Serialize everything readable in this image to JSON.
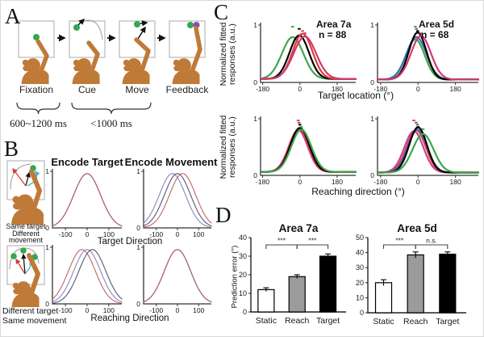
{
  "panel_a": {
    "label": "A",
    "frames": [
      "Fixation",
      "Cue",
      "Move",
      "Feedback"
    ],
    "timing": [
      "600~1200 ms",
      "<1000 ms"
    ],
    "target_color": "#2fa84f",
    "feedback_color": "#8a4fa8",
    "monkey_color": "#bf7a38"
  },
  "panel_b": {
    "label": "B",
    "headers": [
      "Encode Target",
      "Encode Movement"
    ],
    "cartoon1_caption": [
      "Same target",
      "Different",
      "movement"
    ],
    "cartoon2_caption": [
      "Different target",
      "Same movement"
    ],
    "xlabel_top": "Target Direction",
    "xlabel_bottom": "Reaching Direction"
  },
  "panel_c": {
    "label": "C",
    "ylabel_line1": "Normalized fitted",
    "ylabel_line2": "responses (a.u.)"
  },
  "panel_d": {
    "label": "D"
  },
  "chart_data": [
    {
      "id": "b1",
      "type": "line",
      "panel": "B",
      "subtitle": "Encode Target",
      "xlabel": "Target Direction",
      "xlim": [
        -160,
        160
      ],
      "xticks": [
        -100,
        0,
        100
      ],
      "ymin_label": "0",
      "ymax_label": "1",
      "lw": 1.1,
      "series": [
        {
          "color": "#8888bb",
          "peak": 0,
          "sigma": 62,
          "amp": 0.96,
          "base": 0
        },
        {
          "color": "#555577",
          "peak": 0,
          "sigma": 62,
          "amp": 0.96,
          "base": 0
        },
        {
          "color": "#bb6666",
          "peak": 0,
          "sigma": 62,
          "amp": 0.96,
          "base": 0
        }
      ]
    },
    {
      "id": "b2",
      "type": "line",
      "panel": "B",
      "subtitle": "Encode Movement",
      "xlabel": "Target Direction",
      "xlim": [
        -160,
        160
      ],
      "xticks": [
        -100,
        0,
        100
      ],
      "ymin_label": "0",
      "ymax_label": "1",
      "lw": 1.1,
      "series": [
        {
          "color": "#8888bb",
          "peak": -24,
          "sigma": 62,
          "amp": 0.96,
          "base": 0
        },
        {
          "color": "#555577",
          "peak": 0,
          "sigma": 62,
          "amp": 0.96,
          "base": 0
        },
        {
          "color": "#bb6666",
          "peak": 24,
          "sigma": 62,
          "amp": 0.96,
          "base": 0
        }
      ]
    },
    {
      "id": "b3",
      "type": "line",
      "panel": "B",
      "subtitle": "Encode Target",
      "xlabel": "Reaching Direction",
      "xlim": [
        -160,
        160
      ],
      "xticks": [
        -100,
        0,
        100
      ],
      "ymin_label": "0",
      "ymax_label": "1",
      "lw": 1.1,
      "series": [
        {
          "color": "#bb6666",
          "peak": -24,
          "sigma": 62,
          "amp": 0.96,
          "base": 0
        },
        {
          "color": "#8888bb",
          "peak": 0,
          "sigma": 62,
          "amp": 0.96,
          "base": 0
        },
        {
          "color": "#555577",
          "peak": 24,
          "sigma": 62,
          "amp": 0.96,
          "base": 0
        }
      ]
    },
    {
      "id": "b4",
      "type": "line",
      "panel": "B",
      "subtitle": "Encode Movement",
      "xlabel": "Reaching Direction",
      "xlim": [
        -160,
        160
      ],
      "xticks": [
        -100,
        0,
        100
      ],
      "ymin_label": "0",
      "ymax_label": "1",
      "lw": 1.1,
      "series": [
        {
          "color": "#8888bb",
          "peak": 0,
          "sigma": 62,
          "amp": 0.96,
          "base": 0
        },
        {
          "color": "#555577",
          "peak": 0,
          "sigma": 62,
          "amp": 0.96,
          "base": 0
        },
        {
          "color": "#bb6666",
          "peak": 0,
          "sigma": 62,
          "amp": 0.96,
          "base": 0
        }
      ]
    },
    {
      "id": "c1",
      "type": "line",
      "panel": "C",
      "title": "Area 7a",
      "n_label": "n = 88",
      "xlabel": "Target location (°)",
      "ylabel": "Normalized fitted responses (a.u.)",
      "xlim": [
        -190,
        270
      ],
      "xticks": [
        -180,
        0,
        180
      ],
      "ymin_label": "0",
      "ymax_label": "1",
      "lw": 2.2,
      "peak_markers": true,
      "series": [
        {
          "color": "#3fa54d",
          "peak": -35,
          "sigma": 52,
          "amp": 0.73,
          "base": 0.06
        },
        {
          "color": "#000000",
          "peak": -3,
          "sigma": 47,
          "amp": 0.76,
          "base": 0.06
        },
        {
          "color": "#e23b3b",
          "peak": 13,
          "sigma": 48,
          "amp": 0.79,
          "base": 0.06
        },
        {
          "color": "#d23a6e",
          "peak": 24,
          "sigma": 54,
          "amp": 0.74,
          "base": 0.06
        }
      ]
    },
    {
      "id": "c2",
      "type": "line",
      "panel": "C",
      "title": "Area 5d",
      "n_label": "n = 68",
      "xlabel": "Target location (°)",
      "ylabel": "Normalized fitted responses (a.u.)",
      "xlim": [
        -195,
        290
      ],
      "xticks": [
        -180,
        0,
        180
      ],
      "ymin_label": "0",
      "ymax_label": "1",
      "lw": 2.2,
      "peak_markers": true,
      "series": [
        {
          "color": "#3fa54d",
          "peak": -13,
          "sigma": 45,
          "amp": 0.7,
          "base": 0.05
        },
        {
          "color": "#3a6fae",
          "peak": -8,
          "sigma": 48,
          "amp": 0.74,
          "base": 0.05
        },
        {
          "color": "#000000",
          "peak": -2,
          "sigma": 42,
          "amp": 0.82,
          "base": 0.05
        },
        {
          "color": "#d23a6e",
          "peak": 14,
          "sigma": 48,
          "amp": 0.76,
          "base": 0.05
        }
      ]
    },
    {
      "id": "c3",
      "type": "line",
      "panel": "C",
      "xlabel": "Reaching direction (°)",
      "ylabel": "Normalized fitted responses (a.u.)",
      "xlim": [
        -190,
        270
      ],
      "xticks": [
        -180,
        0,
        180
      ],
      "ymin_label": "0",
      "ymax_label": "1",
      "lw": 2.2,
      "peak_markers": true,
      "series": [
        {
          "color": "#c94399",
          "peak": -8,
          "sigma": 46,
          "amp": 0.74,
          "base": 0.06
        },
        {
          "color": "#e23b3b",
          "peak": -4,
          "sigma": 46,
          "amp": 0.76,
          "base": 0.06
        },
        {
          "color": "#000000",
          "peak": 0,
          "sigma": 46,
          "amp": 0.78,
          "base": 0.06
        },
        {
          "color": "#3fa54d",
          "peak": 7,
          "sigma": 48,
          "amp": 0.75,
          "base": 0.06
        }
      ]
    },
    {
      "id": "c4",
      "type": "line",
      "panel": "C",
      "xlabel": "Reaching direction (°)",
      "ylabel": "Normalized fitted responses (a.u.)",
      "xlim": [
        -195,
        290
      ],
      "xticks": [
        -180,
        0,
        180
      ],
      "ymin_label": "0",
      "ymax_label": "1",
      "lw": 2.2,
      "peak_markers": true,
      "series": [
        {
          "color": "#c94399",
          "peak": -20,
          "sigma": 46,
          "amp": 0.73,
          "base": 0.05
        },
        {
          "color": "#e23b3b",
          "peak": -9,
          "sigma": 46,
          "amp": 0.75,
          "base": 0.05
        },
        {
          "color": "#3a6fae",
          "peak": -3,
          "sigma": 46,
          "amp": 0.76,
          "base": 0.05
        },
        {
          "color": "#000000",
          "peak": 0,
          "sigma": 43,
          "amp": 0.8,
          "base": 0.05
        },
        {
          "color": "#3fa54d",
          "peak": 24,
          "sigma": 50,
          "amp": 0.68,
          "base": 0.05
        }
      ]
    },
    {
      "id": "d1",
      "type": "bar",
      "panel": "D",
      "title": "Area 7a",
      "ylabel": "Prediction error (°)",
      "categories": [
        "Static",
        "Reach",
        "Target"
      ],
      "values": [
        12,
        19,
        30
      ],
      "errors": [
        1,
        1,
        1.2
      ],
      "colors": [
        "#ffffff",
        "#9b9b9b",
        "#000000"
      ],
      "ymax": 40,
      "yticks": [
        0,
        10,
        20,
        30,
        40
      ],
      "significance": [
        {
          "a": 0,
          "b": 1,
          "label": "***"
        },
        {
          "a": 1,
          "b": 2,
          "label": "***"
        }
      ]
    },
    {
      "id": "d2",
      "type": "bar",
      "panel": "D",
      "title": "Area 5d",
      "ylabel": "Prediction error (°)",
      "categories": [
        "Static",
        "Reach",
        "Target"
      ],
      "values": [
        20,
        38.5,
        39
      ],
      "errors": [
        2,
        2,
        1.5
      ],
      "colors": [
        "#ffffff",
        "#9b9b9b",
        "#000000"
      ],
      "ymax": 50,
      "yticks": [
        0,
        10,
        20,
        30,
        40,
        50
      ],
      "significance": [
        {
          "a": 0,
          "b": 1,
          "label": "***"
        },
        {
          "a": 1,
          "b": 2,
          "label": "n.s."
        }
      ]
    }
  ]
}
